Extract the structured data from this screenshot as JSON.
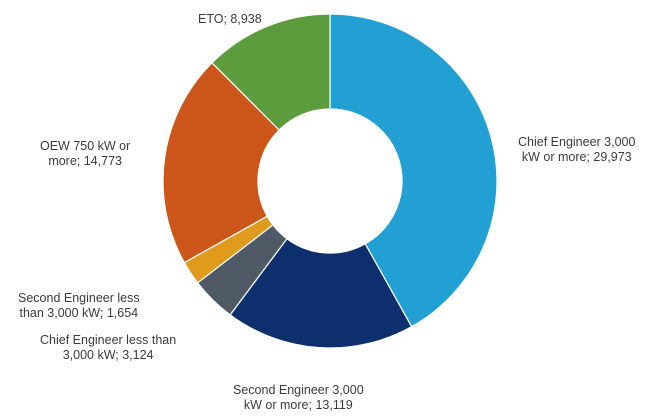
{
  "chart_data": {
    "type": "pie",
    "title": "",
    "hole": true,
    "slices": [
      {
        "label_lines": [
          "Chief Engineer 3,000",
          "kW or more; 29,973"
        ],
        "value": 29973,
        "color": "#22a0d4"
      },
      {
        "label_lines": [
          "Second Engineer 3,000",
          "kW or more; 13,119"
        ],
        "value": 13119,
        "color": "#0d2f6e"
      },
      {
        "label_lines": [
          "Chief Engineer less than",
          "3,000 kW; 3,124"
        ],
        "value": 3124,
        "color": "#4f5a66"
      },
      {
        "label_lines": [
          "Second Engineer less",
          "than 3,000 kW; 1,654"
        ],
        "value": 1654,
        "color": "#e09a1c"
      },
      {
        "label_lines": [
          "OEW 750 kW or",
          "more; 14,773"
        ],
        "value": 14773,
        "color": "#cc5619"
      },
      {
        "label_lines": [
          "ETO; 8,938"
        ],
        "value": 8938,
        "color": "#5d9c3d"
      }
    ]
  }
}
